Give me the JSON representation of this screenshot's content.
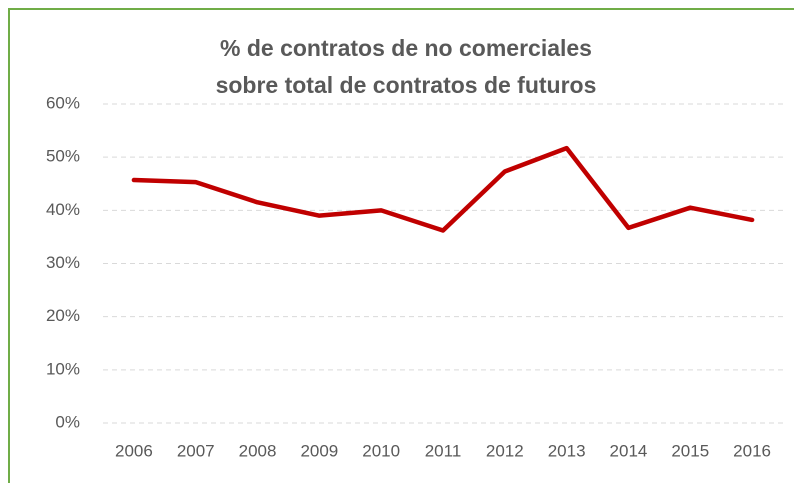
{
  "chart_data": {
    "type": "line",
    "title": [
      "% de contratos de no comerciales",
      "sobre total de contratos de futuros"
    ],
    "categories": [
      "2006",
      "2007",
      "2008",
      "2009",
      "2010",
      "2011",
      "2012",
      "2013",
      "2014",
      "2015",
      "2016"
    ],
    "values": [
      45.7,
      45.3,
      41.5,
      39.0,
      40.0,
      36.2,
      47.3,
      51.7,
      36.7,
      40.5,
      38.2
    ],
    "color": "#c00000",
    "ylim": [
      0,
      60
    ],
    "yticks": [
      {
        "value": 0,
        "label": "0%"
      },
      {
        "value": 10,
        "label": "10%"
      },
      {
        "value": 20,
        "label": "20%"
      },
      {
        "value": 30,
        "label": "30%"
      },
      {
        "value": 40,
        "label": "40%"
      },
      {
        "value": 50,
        "label": "50%"
      },
      {
        "value": 60,
        "label": "60%"
      }
    ],
    "grid": true
  }
}
